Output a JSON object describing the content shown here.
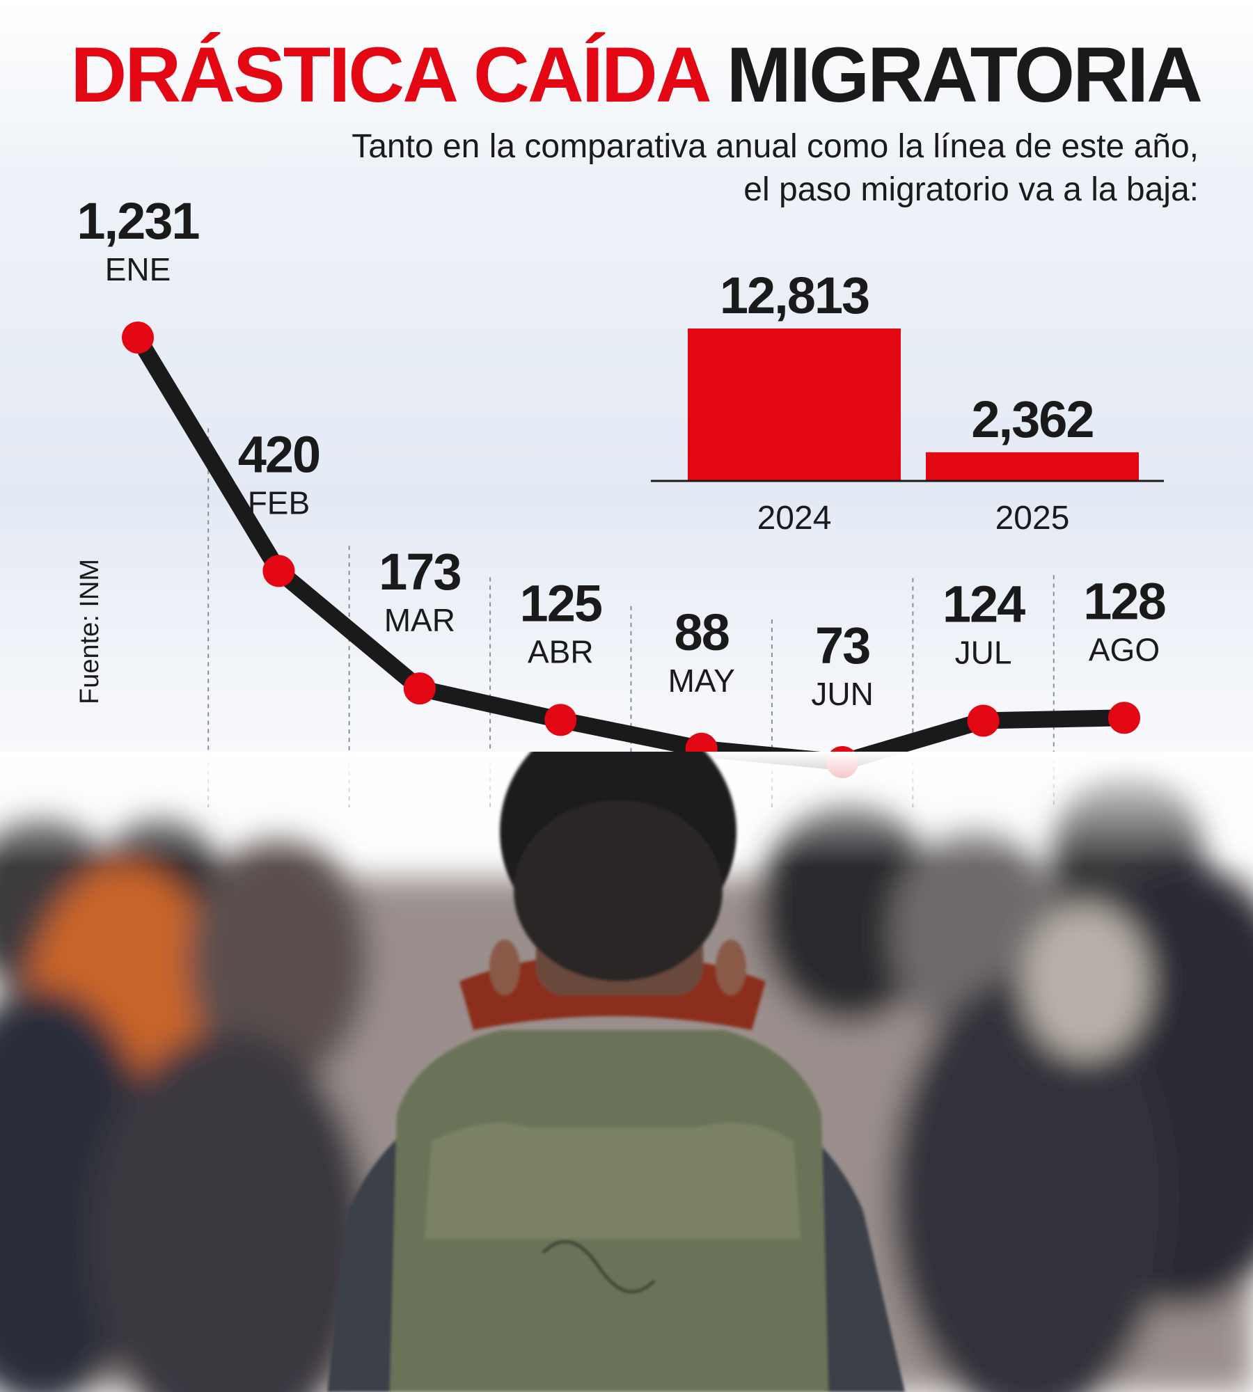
{
  "title": {
    "red": "DRÁSTICA CAÍDA",
    "black": "MIGRATORIA"
  },
  "subtitle": [
    "Tanto en la comparativa anual como la línea de este año,",
    "el paso migratorio va a la baja:"
  ],
  "source": "Fuente: INM",
  "colors": {
    "accent": "#e30613",
    "line": "#1a1a1a",
    "text": "#1a1a1a"
  },
  "chart_data": [
    {
      "type": "line",
      "categories": [
        "ENE",
        "FEB",
        "MAR",
        "ABR",
        "MAY",
        "JUN",
        "JUL",
        "AGO"
      ],
      "values": [
        1231,
        420,
        173,
        125,
        88,
        73,
        124,
        128
      ],
      "value_labels": [
        "1,231",
        "420",
        "173",
        "125",
        "88",
        "73",
        "124",
        "128"
      ],
      "grid": false
    },
    {
      "type": "bar",
      "categories": [
        "2024",
        "2025"
      ],
      "values": [
        12813,
        2362
      ],
      "value_labels": [
        "12,813",
        "2,362"
      ]
    }
  ]
}
